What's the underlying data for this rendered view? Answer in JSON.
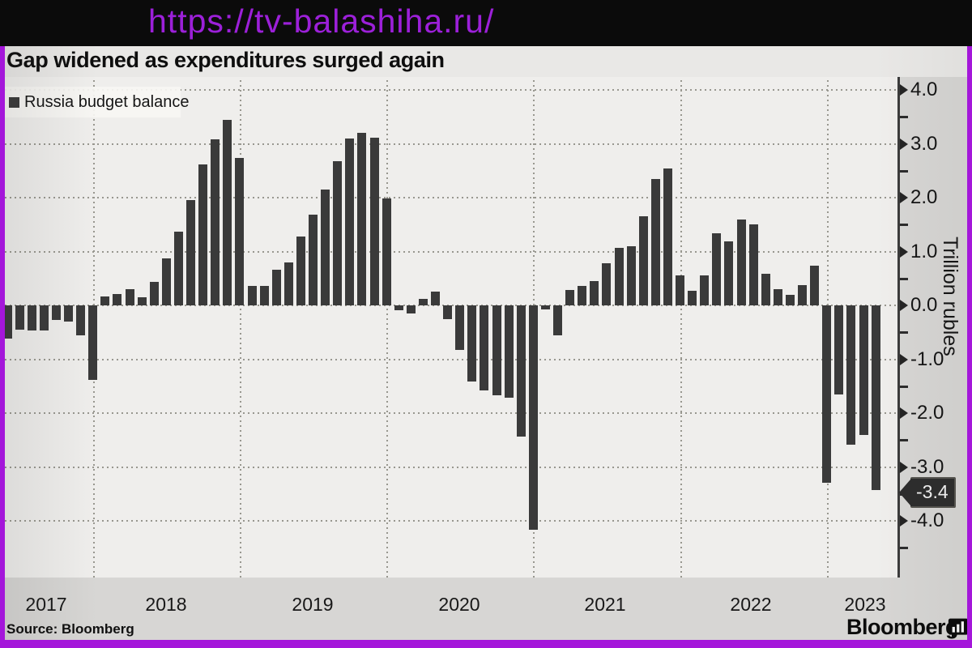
{
  "watermark": {
    "url_text": "https://tv-balashiha.ru/"
  },
  "header": {
    "title": "Gap widened as expenditures surged again"
  },
  "legend": {
    "label": "Russia budget balance"
  },
  "y_axis": {
    "label": "Trillion rubles",
    "tick_labels": [
      "4.0",
      "3.0",
      "2.0",
      "1.0",
      "0.0",
      "-1.0",
      "-2.0",
      "-3.0",
      "-4.0"
    ],
    "current_value_tag": "-3.4"
  },
  "x_axis": {
    "year_labels": [
      "2017",
      "2018",
      "2019",
      "2020",
      "2021",
      "2022",
      "2023"
    ]
  },
  "footer": {
    "source": "Source: Bloomberg",
    "brand": "Bloomberg"
  },
  "colors": {
    "bar": "#3a3a3a",
    "frame": "#a416da",
    "banner_bg": "#0b0b0b",
    "url_text": "#9c20d9",
    "plot_bg": "#efeeec",
    "page_bg": "#d7d6d4",
    "grid": "#98978f",
    "tag_bg": "#2d2d2d",
    "tag_text": "#f2f2f2"
  },
  "chart_data": {
    "type": "bar",
    "title": "Gap widened as expenditures surged again",
    "series_name": "Russia budget balance",
    "ylabel": "Trillion rubles",
    "unit": "trillion rubles",
    "ylim": [
      -4.65,
      4.27
    ],
    "yticks": [
      4,
      3,
      2,
      1,
      0,
      -1,
      -2,
      -3,
      -4
    ],
    "yticks_minor": [
      3.5,
      2.5,
      1.5,
      0.5,
      -0.5,
      -1.5,
      -2.5,
      -3.5,
      -4.5
    ],
    "grid": "dotted",
    "legend_position": "top-left",
    "x_start_month": "2017-05",
    "x_end_month": "2023-04",
    "monthly_values": [
      -0.62,
      -0.45,
      -0.47,
      -0.46,
      -0.27,
      -0.3,
      -0.56,
      -1.38,
      0.17,
      0.21,
      0.3,
      0.15,
      0.44,
      0.87,
      1.37,
      1.96,
      2.62,
      3.08,
      3.45,
      2.74,
      0.36,
      0.36,
      0.66,
      0.8,
      1.28,
      1.68,
      2.15,
      2.68,
      3.1,
      3.2,
      3.11,
      1.98,
      -0.09,
      -0.15,
      0.12,
      0.25,
      -0.26,
      -0.82,
      -1.41,
      -1.58,
      -1.67,
      -1.71,
      -2.43,
      -4.17,
      -0.07,
      -0.55,
      0.28,
      0.36,
      0.45,
      0.78,
      1.07,
      1.1,
      1.66,
      2.35,
      2.54,
      0.56,
      0.27,
      0.56,
      1.34,
      1.19,
      1.6,
      1.5,
      0.58,
      0.3,
      0.2,
      0.37,
      0.74,
      -3.3,
      -1.66,
      -2.58,
      -2.4,
      -3.43
    ],
    "annotation": {
      "text": "-3.4",
      "value": -3.43,
      "points_to": "2023-04"
    }
  }
}
